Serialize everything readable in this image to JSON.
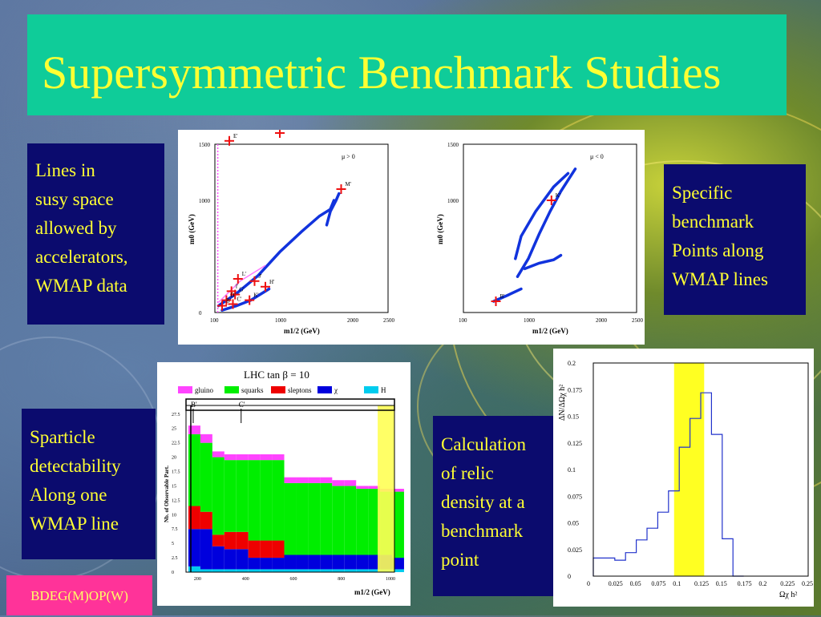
{
  "title": "Supersymmetric Benchmark Studies",
  "notes": {
    "lines": [
      "Lines in",
      "susy space",
      "allowed by",
      "accelerators,",
      "WMAP data"
    ],
    "specific": [
      "Specific",
      "benchmark",
      "Points along",
      "WMAP lines"
    ],
    "sparticle": [
      "Sparticle",
      "detectability",
      "Along one",
      "WMAP line"
    ],
    "relic": [
      "Calculation",
      "of relic",
      "density at a",
      "benchmark",
      "point"
    ]
  },
  "footer": "BDEG(M)OP(W)",
  "colors": {
    "title_bg": "#0fcc99",
    "note_bg": "#0b0b6e",
    "text": "#ffff33",
    "footer_bg": "#ff3399"
  },
  "chart_data": [
    {
      "type": "scatter",
      "panel": "mu_positive",
      "annotation": "μ > 0",
      "xlabel": "m1/2 (GeV)",
      "ylabel": "m0 (GeV)",
      "x_ticks": [
        "100",
        "1000",
        "2000",
        "2500"
      ],
      "y_ticks": [
        "0",
        "1000",
        "1500"
      ],
      "xlim": [
        100,
        2500
      ],
      "ylim": [
        0,
        1500
      ],
      "benchmarks": [
        {
          "label": "E'",
          "x": 300,
          "y": 1530
        },
        {
          "label": "F'",
          "x": 1000,
          "y": 1600
        },
        {
          "label": "M'",
          "x": 1850,
          "y": 1100
        },
        {
          "label": "L'",
          "x": 420,
          "y": 300
        },
        {
          "label": "J'",
          "x": 650,
          "y": 280
        },
        {
          "label": "H'",
          "x": 800,
          "y": 230
        },
        {
          "label": "I'",
          "x": 330,
          "y": 190
        },
        {
          "label": "G'",
          "x": 380,
          "y": 160
        },
        {
          "label": "K'",
          "x": 580,
          "y": 110
        },
        {
          "label": "D'",
          "x": 260,
          "y": 110
        },
        {
          "label": "C'",
          "x": 350,
          "y": 75
        },
        {
          "label": "B'",
          "x": 200,
          "y": 60
        }
      ]
    },
    {
      "type": "scatter",
      "panel": "mu_negative",
      "annotation": "μ < 0",
      "xlabel": "m1/2 (GeV)",
      "ylabel": "m0 (GeV)",
      "x_ticks": [
        "100",
        "1000",
        "2000",
        "2500"
      ],
      "y_ticks": [
        "1000",
        "1500"
      ],
      "xlim": [
        100,
        2500
      ],
      "ylim": [
        0,
        1500
      ],
      "benchmarks": [
        {
          "label": "K'",
          "x": 1320,
          "y": 1000
        },
        {
          "label": "B'",
          "x": 550,
          "y": 100
        }
      ]
    },
    {
      "type": "bar",
      "panel": "lhc_sparticles",
      "title": "LHC tan β = 10",
      "legend": [
        "gluino",
        "squarks",
        "sleptons",
        "χ",
        "H"
      ],
      "colors": [
        "#ff44ff",
        "#00ee00",
        "#ee0000",
        "#0000dd",
        "#00ccee"
      ],
      "xlabel": "m1/2 (GeV)",
      "ylabel": "Nb. of Observable Part.",
      "x_ticks": [
        "200",
        "400",
        "600",
        "800",
        "1000"
      ],
      "y_ticks": [
        "0",
        "2.5",
        "5",
        "7.5",
        "10",
        "12.5",
        "15",
        "17.5",
        "20",
        "22.5",
        "25",
        "27.5"
      ],
      "markers": [
        "B'",
        "C'"
      ],
      "x": [
        150,
        200,
        250,
        300,
        350,
        400,
        450,
        500,
        550,
        600,
        650,
        700,
        750,
        800,
        850,
        900,
        950,
        1000
      ],
      "series": [
        {
          "name": "H",
          "values": [
            1,
            0.5,
            0.5,
            0.5,
            0.5,
            0.5,
            0.5,
            0.5,
            0.5,
            0.5,
            0.5,
            0.5,
            0.5,
            0.5,
            0.5,
            0.5,
            0.5,
            0.5
          ]
        },
        {
          "name": "χ",
          "values": [
            6.5,
            7,
            4,
            3.5,
            3.5,
            2,
            2,
            2,
            2.5,
            2.5,
            2.5,
            2.5,
            2.5,
            2.5,
            2.5,
            2.5,
            2.5,
            2
          ]
        },
        {
          "name": "sleptons",
          "values": [
            4,
            3,
            2,
            3,
            3,
            3,
            3,
            3,
            0,
            0,
            0,
            0,
            0,
            0,
            0,
            0,
            0,
            0
          ]
        },
        {
          "name": "squarks",
          "values": [
            12.5,
            12,
            13.5,
            12.5,
            12.5,
            14,
            14,
            14,
            12.5,
            12.5,
            12.5,
            12.5,
            12,
            12,
            11.5,
            11.5,
            11,
            11.5
          ]
        },
        {
          "name": "gluino",
          "values": [
            1.5,
            1.5,
            1,
            1,
            1,
            1,
            1,
            1,
            1,
            1,
            1,
            1,
            1,
            1,
            0.5,
            0.5,
            0.5,
            0.5
          ]
        }
      ]
    },
    {
      "type": "bar",
      "panel": "relic_density",
      "ylabel": "ΔN/ΔΩχ h²",
      "xlabel": "Ωχ h²",
      "x_ticks": [
        "0",
        "0.025",
        "0.05",
        "0.075",
        "0.1",
        "0.125",
        "0.15",
        "0.175",
        "0.2",
        "0.225",
        "0.25"
      ],
      "y_ticks": [
        "0",
        "0.025",
        "0.05",
        "0.075",
        "0.1",
        "0.125",
        "0.15",
        "0.175",
        "0.2"
      ],
      "xlim": [
        0,
        0.25
      ],
      "ylim": [
        0,
        0.2
      ],
      "band": [
        0.094,
        0.129
      ],
      "bin_width": 0.0125,
      "x": [
        0.0,
        0.0125,
        0.025,
        0.0375,
        0.05,
        0.0625,
        0.075,
        0.0875,
        0.1,
        0.1125,
        0.125,
        0.1375,
        0.15,
        0.1625
      ],
      "values": [
        0.017,
        0.017,
        0.015,
        0.022,
        0.034,
        0.045,
        0.06,
        0.08,
        0.121,
        0.148,
        0.172,
        0.133,
        0.035,
        0.0
      ]
    }
  ]
}
